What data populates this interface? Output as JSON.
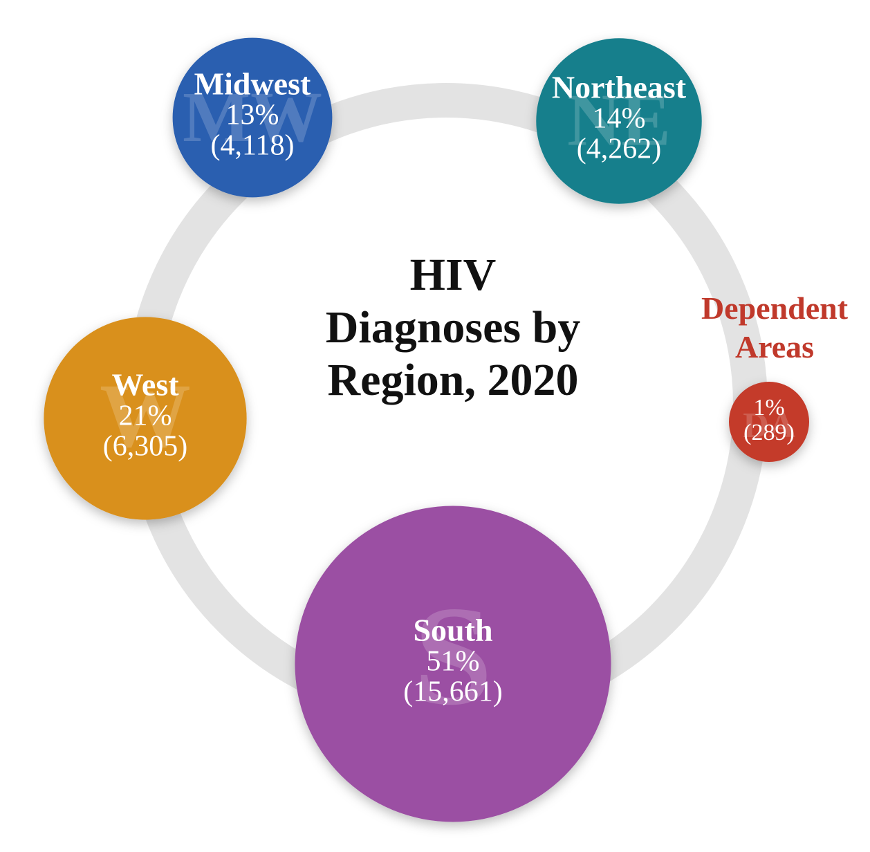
{
  "chart_data": {
    "type": "bubble",
    "title": "HIV Diagnoses by Region, 2020",
    "categories": [
      "Midwest",
      "Northeast",
      "Dependent Areas",
      "South",
      "West"
    ],
    "watermarks": [
      "MW",
      "NE",
      "DA",
      "S",
      "W"
    ],
    "values": [
      13,
      14,
      1,
      51,
      21
    ],
    "value_labels": [
      "13%",
      "14%",
      "1%",
      "51%",
      "21%"
    ],
    "counts": [
      4118,
      4262,
      289,
      15661,
      6305
    ],
    "count_labels": [
      "(4,118)",
      "(4,262)",
      "(289)",
      "(15,661)",
      "(6,305)"
    ],
    "colors": [
      "#2a5fb0",
      "#167f8c",
      "#c43a2c",
      "#9b4fa3",
      "#d9901e"
    ],
    "ring_color": "#e3e3e3"
  }
}
